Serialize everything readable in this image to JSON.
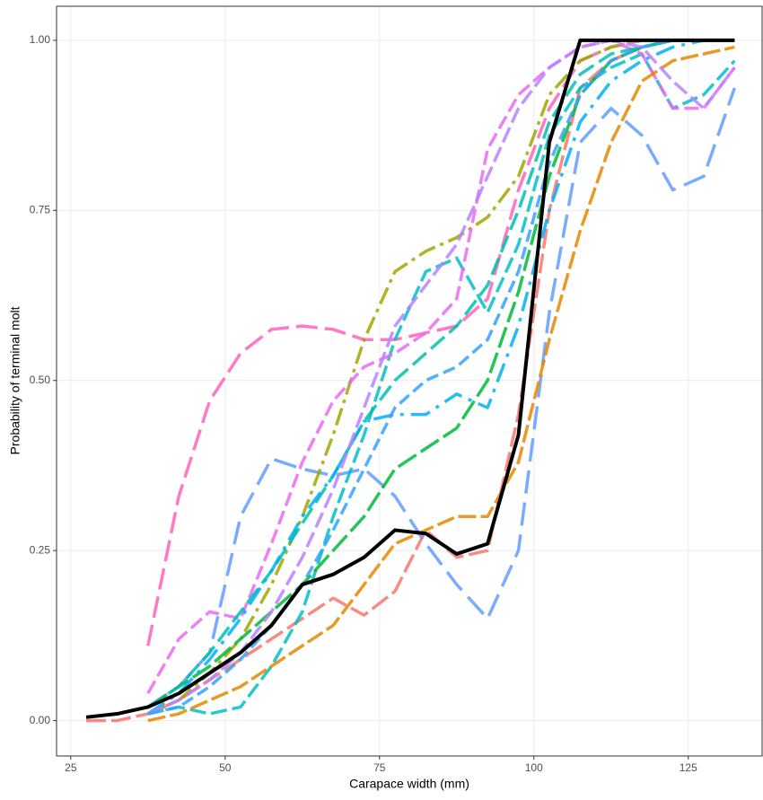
{
  "chart_data": {
    "type": "line",
    "xlabel": "Carapace width (mm)",
    "ylabel": "Probability of terminal molt",
    "x": [
      27.5,
      32.5,
      37.5,
      42.5,
      47.5,
      52.5,
      57.5,
      62.5,
      67.5,
      72.5,
      77.5,
      82.5,
      87.5,
      92.5,
      97.5,
      102.5,
      107.5,
      112.5,
      117.5,
      122.5,
      127.5,
      132.5
    ],
    "xlim": [
      22.7,
      137.1
    ],
    "ylim": [
      -0.052,
      1.05
    ],
    "xticks": [
      25,
      50,
      75,
      100,
      125
    ],
    "yticks": [
      {
        "value": 0,
        "label": "0.00"
      },
      {
        "value": 0.25,
        "label": "0.25"
      },
      {
        "value": 0.5,
        "label": "0.50"
      },
      {
        "value": 0.75,
        "label": "0.75"
      },
      {
        "value": 1,
        "label": "1.00"
      }
    ],
    "grid": true,
    "series": [
      {
        "color": "#f8766d",
        "dash": "22,6",
        "values": [
          0,
          0,
          0.01,
          0.03,
          0.06,
          0.09,
          0.12,
          0.15,
          0.18,
          0.155,
          0.19,
          0.28,
          0.24,
          0.25,
          0.45,
          0.75,
          0.93,
          0.97,
          0.99,
          1,
          1,
          1
        ]
      },
      {
        "color": "#ff62bc",
        "dash": "24,8",
        "values": [
          null,
          null,
          0.11,
          0.33,
          0.47,
          0.54,
          0.575,
          0.58,
          0.575,
          0.56,
          0.56,
          0.57,
          0.58,
          0.62,
          0.78,
          0.9,
          0.97,
          0.99,
          1,
          1,
          1,
          1
        ]
      },
      {
        "color": "#619cff",
        "dash": "26,10",
        "values": [
          null,
          null,
          0.02,
          0.05,
          0.1,
          0.3,
          0.385,
          0.37,
          0.36,
          0.37,
          0.33,
          0.26,
          0.2,
          0.15,
          0.25,
          0.6,
          0.85,
          0.9,
          0.86,
          0.78,
          0.8,
          0.93
        ]
      },
      {
        "color": "#a3a500",
        "dash": "20,6,4,6",
        "values": [
          null,
          null,
          0.01,
          0.03,
          0.07,
          0.12,
          0.2,
          0.3,
          0.42,
          0.56,
          0.66,
          0.69,
          0.71,
          0.74,
          0.8,
          0.92,
          0.97,
          0.99,
          1,
          1,
          1,
          1
        ]
      },
      {
        "color": "#00bfc4",
        "dash": "18,6",
        "values": [
          null,
          null,
          0.01,
          0.02,
          0.01,
          0.02,
          0.08,
          0.16,
          0.3,
          0.42,
          0.56,
          0.66,
          0.68,
          0.6,
          0.7,
          0.86,
          0.93,
          0.96,
          0.98,
          0.9,
          0.92,
          0.97
        ]
      },
      {
        "color": "#e76bf3",
        "dash": "16,6",
        "values": [
          null,
          null,
          0.04,
          0.12,
          0.16,
          0.15,
          0.26,
          0.38,
          0.47,
          0.52,
          0.54,
          0.57,
          0.62,
          0.84,
          0.92,
          0.96,
          0.99,
          1,
          0.98,
          0.9,
          0.9,
          0.96
        ]
      },
      {
        "color": "#00ba38",
        "dash": "24,6",
        "values": [
          null,
          null,
          0.02,
          0.05,
          0.08,
          0.12,
          0.16,
          0.2,
          0.25,
          0.3,
          0.37,
          0.4,
          0.43,
          0.5,
          0.63,
          0.8,
          0.92,
          0.97,
          0.99,
          1,
          1,
          1
        ]
      },
      {
        "color": "#e58700",
        "dash": "20,5",
        "values": [
          null,
          null,
          0,
          0.01,
          0.03,
          0.05,
          0.08,
          0.11,
          0.14,
          0.2,
          0.26,
          0.28,
          0.3,
          0.3,
          0.38,
          0.56,
          0.72,
          0.85,
          0.94,
          0.97,
          0.98,
          0.99
        ]
      },
      {
        "color": "#00c0af",
        "dash": "20,7",
        "values": [
          null,
          null,
          0.02,
          0.05,
          0.1,
          0.16,
          0.22,
          0.29,
          0.36,
          0.44,
          0.5,
          0.54,
          0.58,
          0.64,
          0.75,
          0.88,
          0.95,
          0.98,
          0.99,
          1,
          1,
          1
        ]
      },
      {
        "color": "#00b0f6",
        "dash": "22,8,4,8",
        "values": [
          null,
          null,
          0.01,
          0.04,
          0.09,
          0.15,
          0.22,
          0.3,
          0.36,
          0.44,
          0.45,
          0.45,
          0.48,
          0.46,
          0.58,
          0.75,
          0.88,
          0.94,
          0.97,
          0.99,
          1,
          1
        ]
      },
      {
        "color": "#b983ff",
        "dash": "18,6",
        "values": [
          null,
          null,
          0.01,
          0.03,
          0.06,
          0.1,
          0.16,
          0.24,
          0.34,
          0.46,
          0.58,
          0.64,
          0.7,
          0.8,
          0.9,
          0.96,
          0.99,
          1,
          0.99,
          0.94,
          0.9,
          0.96
        ]
      },
      {
        "color": "#35a2ff",
        "dash": "14,6",
        "values": [
          null,
          null,
          0.01,
          0.02,
          0.05,
          0.09,
          0.14,
          0.2,
          0.28,
          0.37,
          0.46,
          0.5,
          0.52,
          0.56,
          0.66,
          0.82,
          0.92,
          0.97,
          0.99,
          1,
          1,
          1
        ]
      },
      {
        "color": "#000000",
        "dash": "none",
        "width": 4,
        "values": [
          0.005,
          0.01,
          0.02,
          0.04,
          0.07,
          0.1,
          0.14,
          0.2,
          0.215,
          0.24,
          0.28,
          0.275,
          0.245,
          0.26,
          0.42,
          0.85,
          1,
          1,
          1,
          1,
          1,
          1
        ]
      }
    ]
  }
}
